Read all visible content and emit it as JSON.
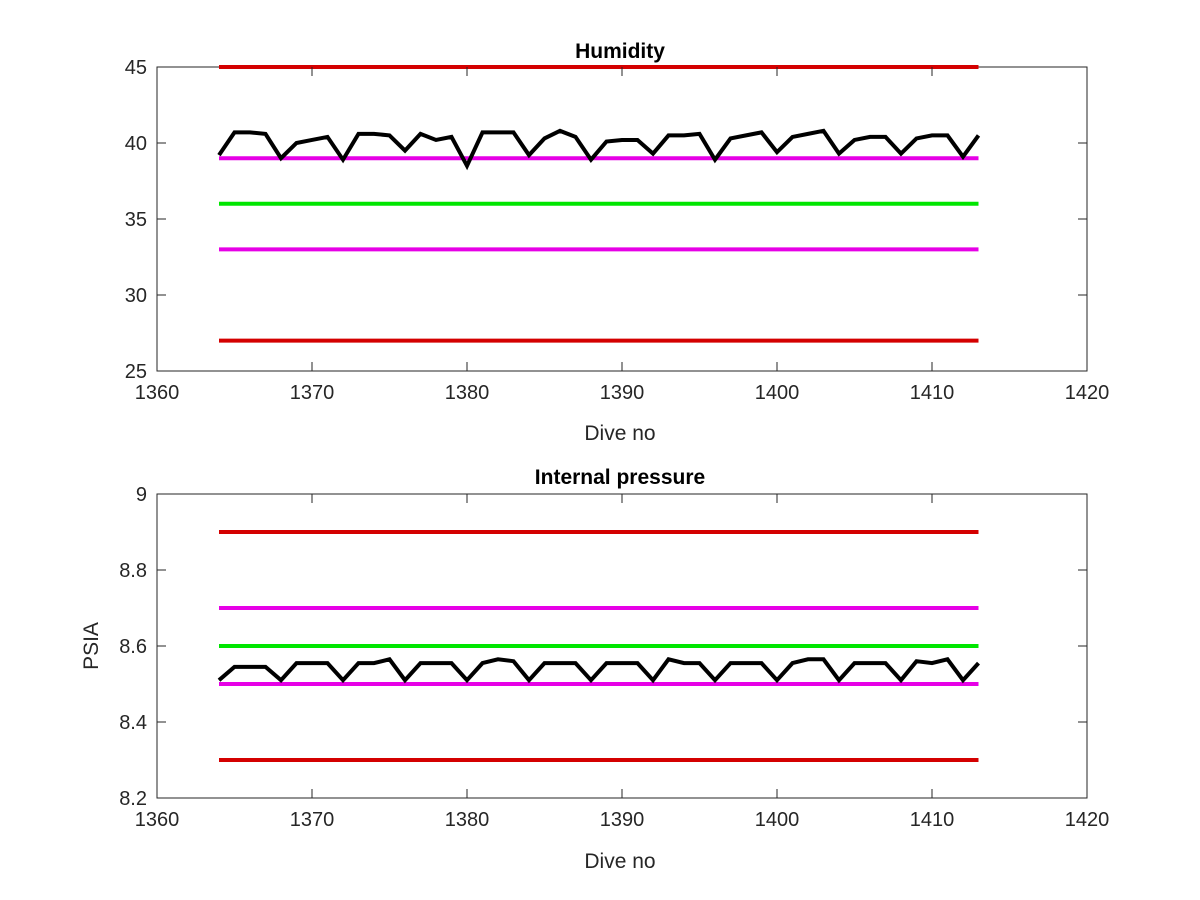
{
  "figure": {
    "background": "#ffffff"
  },
  "chart_data": [
    {
      "type": "line",
      "title": "Humidity",
      "xlabel": "Dive no",
      "ylabel": "",
      "xlim": [
        1360,
        1420
      ],
      "ylim": [
        25,
        45
      ],
      "xticks": [
        "1360",
        "1370",
        "1380",
        "1390",
        "1400",
        "1410",
        "1420"
      ],
      "yticks": [
        "25",
        "30",
        "35",
        "40",
        "45"
      ],
      "grid": false,
      "reference_lines": [
        {
          "y": 45,
          "x_range": [
            1364,
            1413
          ],
          "color": "#d40000"
        },
        {
          "y": 39,
          "x_range": [
            1364,
            1413
          ],
          "color": "#e600e6"
        },
        {
          "y": 36,
          "x_range": [
            1364,
            1413
          ],
          "color": "#00e600"
        },
        {
          "y": 33,
          "x_range": [
            1364,
            1413
          ],
          "color": "#e600e6"
        },
        {
          "y": 27,
          "x_range": [
            1364,
            1413
          ],
          "color": "#d40000"
        }
      ],
      "series": [
        {
          "color": "#000000",
          "x": [
            1364,
            1365,
            1366,
            1367,
            1368,
            1369,
            1370,
            1371,
            1372,
            1373,
            1374,
            1375,
            1376,
            1377,
            1378,
            1379,
            1380,
            1381,
            1382,
            1383,
            1384,
            1385,
            1386,
            1387,
            1388,
            1389,
            1390,
            1391,
            1392,
            1393,
            1394,
            1395,
            1396,
            1397,
            1398,
            1399,
            1400,
            1401,
            1402,
            1403,
            1404,
            1405,
            1406,
            1407,
            1408,
            1409,
            1410,
            1411,
            1412,
            1413
          ],
          "y": [
            39.2,
            40.7,
            40.7,
            40.6,
            39.0,
            40.0,
            40.2,
            40.4,
            38.9,
            40.6,
            40.6,
            40.5,
            39.5,
            40.6,
            40.2,
            40.4,
            38.5,
            40.7,
            40.7,
            40.7,
            39.2,
            40.3,
            40.8,
            40.4,
            38.9,
            40.1,
            40.2,
            40.2,
            39.3,
            40.5,
            40.5,
            40.6,
            38.9,
            40.3,
            40.5,
            40.7,
            39.4,
            40.4,
            40.6,
            40.8,
            39.3,
            40.2,
            40.4,
            40.4,
            39.3,
            40.3,
            40.5,
            40.5,
            39.1,
            40.5
          ]
        }
      ]
    },
    {
      "type": "line",
      "title": "Internal pressure",
      "xlabel": "Dive no",
      "ylabel": "PSIA",
      "xlim": [
        1360,
        1420
      ],
      "ylim": [
        8.2,
        9.0
      ],
      "xticks": [
        "1360",
        "1370",
        "1380",
        "1390",
        "1400",
        "1410",
        "1420"
      ],
      "yticks": [
        "8.2",
        "8.4",
        "8.6",
        "8.8",
        "9"
      ],
      "grid": false,
      "reference_lines": [
        {
          "y": 8.9,
          "x_range": [
            1364,
            1413
          ],
          "color": "#d40000"
        },
        {
          "y": 8.7,
          "x_range": [
            1364,
            1413
          ],
          "color": "#e600e6"
        },
        {
          "y": 8.6,
          "x_range": [
            1364,
            1413
          ],
          "color": "#00e600"
        },
        {
          "y": 8.5,
          "x_range": [
            1364,
            1413
          ],
          "color": "#e600e6"
        },
        {
          "y": 8.3,
          "x_range": [
            1364,
            1413
          ],
          "color": "#d40000"
        }
      ],
      "series": [
        {
          "color": "#000000",
          "x": [
            1364,
            1365,
            1366,
            1367,
            1368,
            1369,
            1370,
            1371,
            1372,
            1373,
            1374,
            1375,
            1376,
            1377,
            1378,
            1379,
            1380,
            1381,
            1382,
            1383,
            1384,
            1385,
            1386,
            1387,
            1388,
            1389,
            1390,
            1391,
            1392,
            1393,
            1394,
            1395,
            1396,
            1397,
            1398,
            1399,
            1400,
            1401,
            1402,
            1403,
            1404,
            1405,
            1406,
            1407,
            1408,
            1409,
            1410,
            1411,
            1412,
            1413
          ],
          "y": [
            8.51,
            8.545,
            8.545,
            8.545,
            8.51,
            8.555,
            8.555,
            8.555,
            8.51,
            8.555,
            8.555,
            8.565,
            8.51,
            8.555,
            8.555,
            8.555,
            8.51,
            8.555,
            8.565,
            8.56,
            8.51,
            8.555,
            8.555,
            8.555,
            8.51,
            8.555,
            8.555,
            8.555,
            8.51,
            8.565,
            8.555,
            8.555,
            8.51,
            8.555,
            8.555,
            8.555,
            8.51,
            8.555,
            8.565,
            8.565,
            8.51,
            8.555,
            8.555,
            8.555,
            8.51,
            8.56,
            8.555,
            8.565,
            8.51,
            8.555
          ]
        }
      ]
    }
  ]
}
